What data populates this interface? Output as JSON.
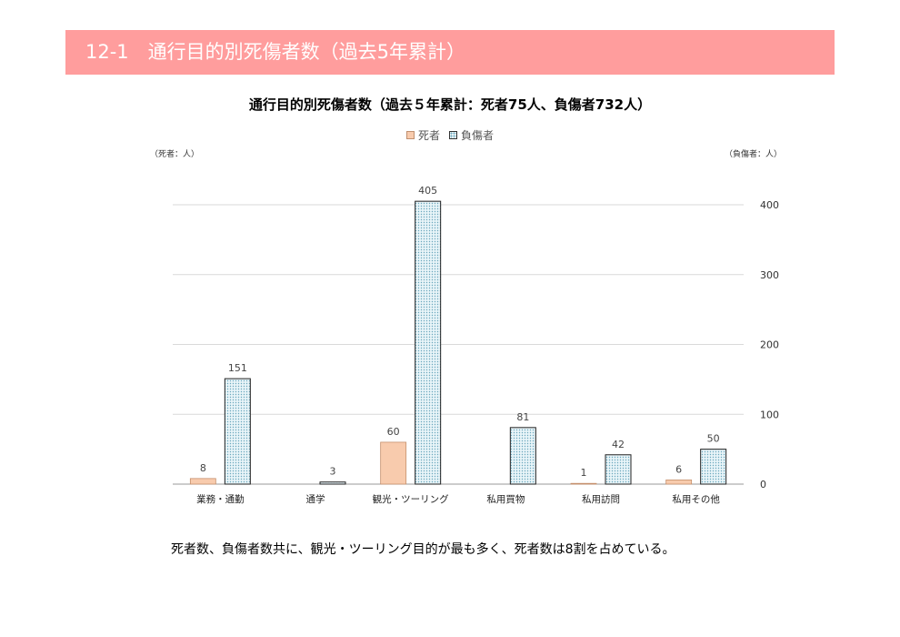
{
  "header": {
    "title": "12-1　通行目的別死傷者数（過去5年累計）"
  },
  "colors": {
    "header_band": "#ff9d9d",
    "dead_fill": "#f8cbad",
    "injured_fill": "#e8f4f8",
    "injured_dots": "#6aa7bd"
  },
  "chart_data": {
    "type": "bar",
    "title": "通行目的別死傷者数（過去５年累計：死者75人、負傷者732人）",
    "legend_placement": "top",
    "unit_left": "（死者：人）",
    "unit_right": "（負傷者：人）",
    "categories": [
      "業務・通勤",
      "通学",
      "観光・ツーリング",
      "私用買物",
      "私用訪問",
      "私用その他"
    ],
    "series": [
      {
        "name": "死者",
        "axis": "left",
        "values": [
          8,
          null,
          60,
          null,
          1,
          6
        ]
      },
      {
        "name": "負傷者",
        "axis": "right",
        "values": [
          151,
          3,
          405,
          81,
          42,
          50
        ]
      }
    ],
    "yticks": [
      0,
      100,
      200,
      300,
      400
    ],
    "ylim": [
      0,
      400
    ],
    "grid": true
  },
  "caption": "死者数、負傷者数共に、観光・ツーリング目的が最も多く、死者数は8割を占めている。"
}
